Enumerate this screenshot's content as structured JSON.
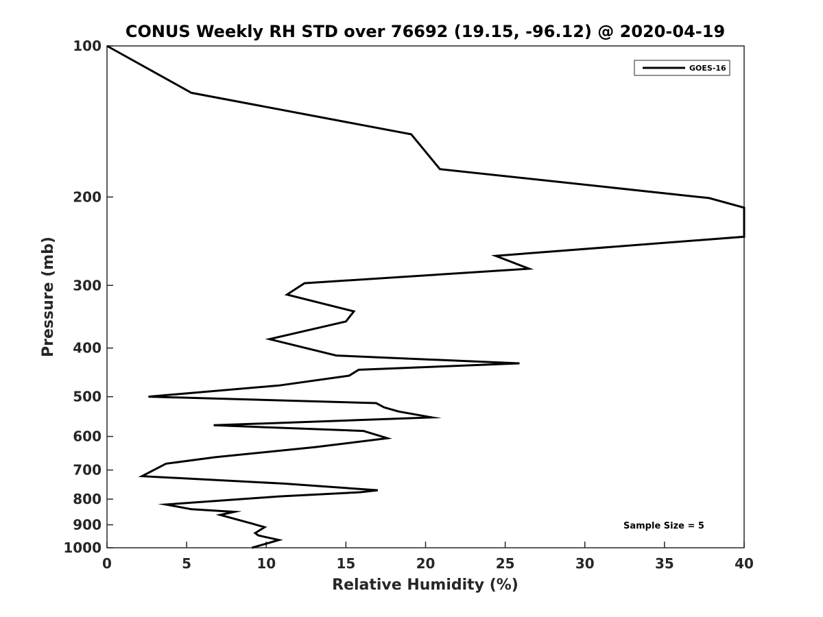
{
  "chart_data": {
    "type": "line",
    "title": "CONUS Weekly RH STD over 76692 (19.15, -96.12) @ 2020-04-19",
    "xlabel": "Relative Humidity (%)",
    "ylabel": "Pressure (mb)",
    "xlim": [
      0,
      40
    ],
    "ylim": [
      100,
      1000
    ],
    "yscale": "log",
    "y_reversed": true,
    "grid": false,
    "legend_position": "top-right",
    "xticks": [
      0,
      5,
      10,
      15,
      20,
      25,
      30,
      35,
      40
    ],
    "yticks": [
      100,
      200,
      300,
      400,
      500,
      600,
      700,
      800,
      900,
      1000
    ],
    "annotation": "Sample Size = 5",
    "series": [
      {
        "name": "GOES-16",
        "color": "#000000",
        "points": [
          [
            0,
            100
          ],
          [
            5.3,
            124
          ],
          [
            19.1,
            150
          ],
          [
            20.9,
            176
          ],
          [
            37.8,
            201
          ],
          [
            40.0,
            210
          ],
          [
            40.0,
            240
          ],
          [
            24.4,
            262
          ],
          [
            26.5,
            278
          ],
          [
            12.4,
            297
          ],
          [
            11.3,
            313
          ],
          [
            15.5,
            338
          ],
          [
            15.0,
            354
          ],
          [
            10.2,
            384
          ],
          [
            14.4,
            414
          ],
          [
            25.9,
            429
          ],
          [
            15.8,
            442
          ],
          [
            15.2,
            454
          ],
          [
            10.8,
            475
          ],
          [
            2.6,
            500
          ],
          [
            16.9,
            515
          ],
          [
            17.4,
            525
          ],
          [
            18.3,
            535
          ],
          [
            20.4,
            550
          ],
          [
            6.7,
            570
          ],
          [
            16.1,
            585
          ],
          [
            17.6,
            605
          ],
          [
            13.1,
            630
          ],
          [
            6.8,
            660
          ],
          [
            3.7,
            680
          ],
          [
            2.2,
            720
          ],
          [
            11.1,
            745
          ],
          [
            17.0,
            768
          ],
          [
            15.9,
            775
          ],
          [
            10.8,
            790
          ],
          [
            3.7,
            820
          ],
          [
            5.3,
            838
          ],
          [
            8.0,
            848
          ],
          [
            7.1,
            860
          ],
          [
            9.1,
            895
          ],
          [
            9.9,
            910
          ],
          [
            9.3,
            935
          ],
          [
            9.5,
            945
          ],
          [
            10.8,
            965
          ],
          [
            9.1,
            1000
          ]
        ]
      }
    ]
  }
}
